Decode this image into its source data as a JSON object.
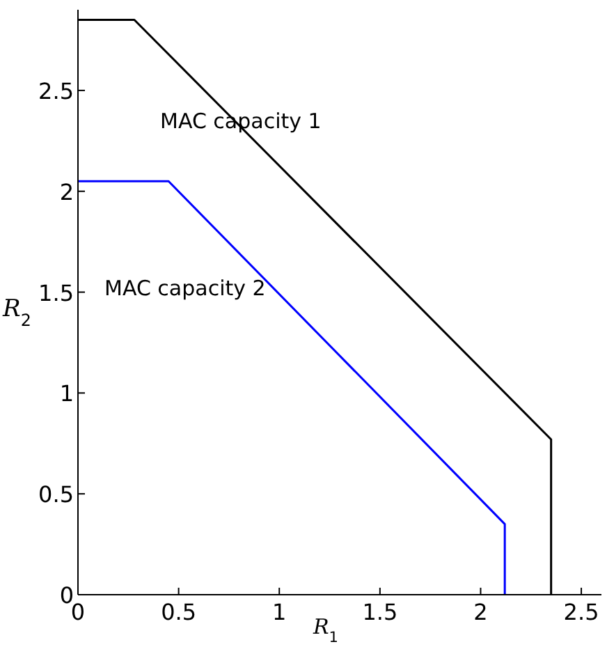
{
  "chart_data": {
    "type": "line",
    "xlabel": "R$_{1}$",
    "ylabel": "R$_{2}$",
    "series": [
      {
        "color": "#000000",
        "x": [
          0,
          0.28,
          2.35,
          2.35
        ],
        "values": [
          2.85,
          2.85,
          0.77,
          0
        ]
      },
      {
        "color": "#0000ff",
        "x": [
          0,
          0.45,
          2.12,
          2.12
        ],
        "values": [
          2.05,
          2.05,
          0.35,
          0
        ]
      }
    ],
    "annotations": [
      "MAC capacity 1",
      "MAC capacity 2"
    ],
    "xlim": [
      0,
      2.6
    ],
    "ylim": [
      0,
      2.9
    ],
    "xticks": [
      0,
      0.5,
      1,
      1.5,
      2,
      2.5
    ],
    "yticks": [
      0,
      0.5,
      1,
      1.5,
      2,
      2.5
    ],
    "grid": false,
    "marker": "none",
    "line_style": "solid"
  }
}
